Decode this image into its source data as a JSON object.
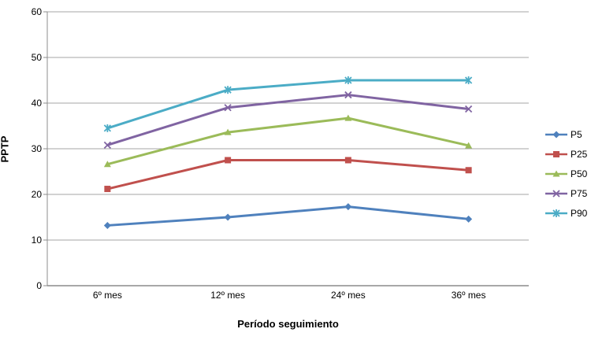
{
  "chart_data": {
    "type": "line",
    "title": "",
    "xlabel": "Período seguimiento",
    "ylabel": "PPTP",
    "categories": [
      "6º mes",
      "12º mes",
      "24º mes",
      "36º mes"
    ],
    "series": [
      {
        "name": "P5",
        "color": "#4F81BD",
        "marker": "diamond",
        "values": [
          13.2,
          15.0,
          17.3,
          14.6
        ]
      },
      {
        "name": "P25",
        "color": "#C0504D",
        "marker": "square",
        "values": [
          21.2,
          27.5,
          27.5,
          25.3
        ]
      },
      {
        "name": "P50",
        "color": "#9BBB59",
        "marker": "triangle",
        "values": [
          26.6,
          33.6,
          36.7,
          30.7
        ]
      },
      {
        "name": "P75",
        "color": "#8064A2",
        "marker": "x",
        "values": [
          30.8,
          39.0,
          41.8,
          38.7
        ]
      },
      {
        "name": "P90",
        "color": "#4BACC6",
        "marker": "asterisk",
        "values": [
          34.5,
          42.9,
          45.0,
          45.0
        ]
      }
    ],
    "ylim": [
      0,
      60
    ],
    "yticks": [
      0,
      10,
      20,
      30,
      40,
      50,
      60
    ],
    "grid": true,
    "legend_position": "right",
    "colors": {
      "gridline": "#A6A6A6",
      "axis": "#8C8C8C",
      "text": "#000000",
      "background": "#FFFFFF"
    }
  }
}
